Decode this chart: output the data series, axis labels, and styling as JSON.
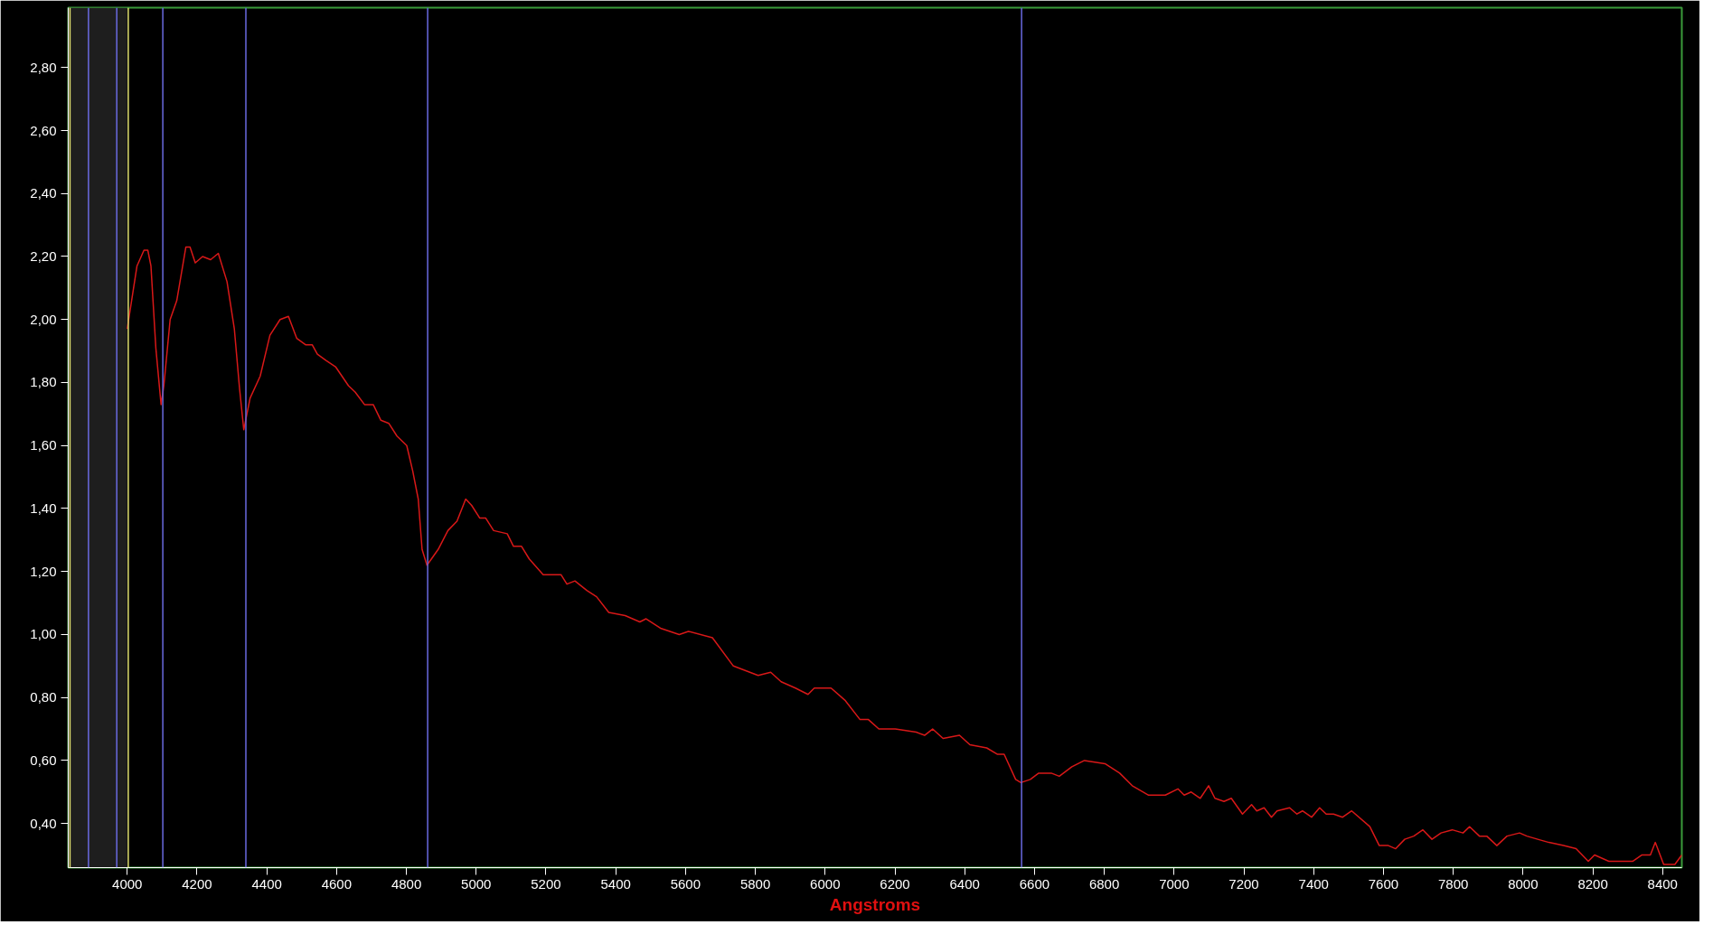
{
  "chart_data": {
    "type": "line",
    "xlabel": "Angstroms",
    "xlim": [
      3831,
      8455
    ],
    "ylim": [
      0.26,
      2.99
    ],
    "xticks": [
      4000,
      4200,
      4400,
      4600,
      4800,
      5000,
      5200,
      5400,
      5600,
      5800,
      6000,
      6200,
      6400,
      6600,
      6800,
      7000,
      7200,
      7400,
      7600,
      7800,
      8000,
      8200,
      8400
    ],
    "yticks": [
      {
        "value": 0.4,
        "label": "0,40"
      },
      {
        "value": 0.6,
        "label": "0,60"
      },
      {
        "value": 0.8,
        "label": "0,80"
      },
      {
        "value": 1.0,
        "label": "1,00"
      },
      {
        "value": 1.2,
        "label": "1,20"
      },
      {
        "value": 1.4,
        "label": "1,40"
      },
      {
        "value": 1.6,
        "label": "1,60"
      },
      {
        "value": 1.8,
        "label": "1,80"
      },
      {
        "value": 2.0,
        "label": "2,00"
      },
      {
        "value": 2.2,
        "label": "2,20"
      },
      {
        "value": 2.4,
        "label": "2,40"
      },
      {
        "value": 2.6,
        "label": "2,60"
      },
      {
        "value": 2.8,
        "label": "2,80"
      }
    ],
    "grid": false,
    "series": [
      {
        "color": "#d81818",
        "x": [
          4000,
          4028,
          4048,
          4059,
          4068,
          4082,
          4097,
          4105,
          4123,
          4142,
          4168,
          4180,
          4195,
          4216,
          4239,
          4261,
          4286,
          4307,
          4322,
          4334,
          4352,
          4381,
          4409,
          4438,
          4462,
          4486,
          4511,
          4530,
          4545,
          4570,
          4597,
          4634,
          4653,
          4680,
          4705,
          4727,
          4750,
          4773,
          4801,
          4818,
          4834,
          4845,
          4859,
          4891,
          4919,
          4945,
          4970,
          4987,
          5010,
          5027,
          5050,
          5089,
          5107,
          5130,
          5152,
          5192,
          5226,
          5243,
          5260,
          5283,
          5317,
          5345,
          5380,
          5427,
          5469,
          5487,
          5528,
          5582,
          5608,
          5677,
          5737,
          5808,
          5844,
          5874,
          5915,
          5951,
          5969,
          6017,
          6058,
          6100,
          6124,
          6154,
          6201,
          6261,
          6285,
          6308,
          6338,
          6385,
          6415,
          6463,
          6493,
          6513,
          6546,
          6561,
          6588,
          6612,
          6648,
          6671,
          6707,
          6743,
          6802,
          6844,
          6880,
          6927,
          6975,
          7011,
          7029,
          7049,
          7075,
          7099,
          7117,
          7143,
          7164,
          7196,
          7222,
          7237,
          7258,
          7279,
          7295,
          7331,
          7352,
          7368,
          7394,
          7417,
          7436,
          7457,
          7483,
          7509,
          7561,
          7588,
          7614,
          7635,
          7661,
          7687,
          7713,
          7739,
          7765,
          7797,
          7828,
          7847,
          7875,
          7896,
          7925,
          7954,
          7990,
          8011,
          8042,
          8074,
          8116,
          8152,
          8187,
          8205,
          8246,
          8283,
          8314,
          8340,
          8365,
          8379,
          8403,
          8435,
          8455
        ],
        "values": [
          1.97,
          2.17,
          2.22,
          2.22,
          2.17,
          1.91,
          1.73,
          1.79,
          2.0,
          2.06,
          2.23,
          2.23,
          2.18,
          2.2,
          2.19,
          2.21,
          2.12,
          1.97,
          1.78,
          1.65,
          1.75,
          1.82,
          1.95,
          2.0,
          2.01,
          1.94,
          1.92,
          1.92,
          1.89,
          1.87,
          1.85,
          1.79,
          1.77,
          1.73,
          1.73,
          1.68,
          1.67,
          1.63,
          1.6,
          1.52,
          1.43,
          1.27,
          1.22,
          1.27,
          1.33,
          1.36,
          1.43,
          1.41,
          1.37,
          1.37,
          1.33,
          1.32,
          1.28,
          1.28,
          1.24,
          1.19,
          1.19,
          1.19,
          1.16,
          1.17,
          1.14,
          1.12,
          1.07,
          1.06,
          1.04,
          1.05,
          1.02,
          1.0,
          1.01,
          0.99,
          0.9,
          0.87,
          0.88,
          0.85,
          0.83,
          0.81,
          0.83,
          0.83,
          0.79,
          0.73,
          0.73,
          0.7,
          0.7,
          0.69,
          0.68,
          0.7,
          0.67,
          0.68,
          0.65,
          0.64,
          0.62,
          0.62,
          0.54,
          0.53,
          0.54,
          0.56,
          0.56,
          0.55,
          0.58,
          0.6,
          0.59,
          0.56,
          0.52,
          0.49,
          0.49,
          0.51,
          0.49,
          0.5,
          0.48,
          0.52,
          0.48,
          0.47,
          0.48,
          0.43,
          0.46,
          0.44,
          0.45,
          0.42,
          0.44,
          0.45,
          0.43,
          0.44,
          0.42,
          0.45,
          0.43,
          0.43,
          0.42,
          0.44,
          0.39,
          0.33,
          0.33,
          0.32,
          0.35,
          0.36,
          0.38,
          0.35,
          0.37,
          0.38,
          0.37,
          0.39,
          0.36,
          0.36,
          0.33,
          0.36,
          0.37,
          0.36,
          0.35,
          0.34,
          0.33,
          0.32,
          0.28,
          0.3,
          0.28,
          0.28,
          0.28,
          0.3,
          0.3,
          0.34,
          0.27,
          0.27,
          0.3
        ]
      }
    ],
    "line_style": "solid",
    "bands": [
      {
        "axis": "x",
        "from": 3831,
        "to": 4000,
        "color": "#1e1e1e"
      }
    ],
    "ref_lines": [
      {
        "axis": "x",
        "value": 3836,
        "color": "#e0e070"
      },
      {
        "axis": "x",
        "value": 4003,
        "color": "#e0e070"
      },
      {
        "axis": "x",
        "value": 3889,
        "color": "#6a6ae0"
      },
      {
        "axis": "x",
        "value": 3970,
        "color": "#6a6ae0"
      },
      {
        "axis": "x",
        "value": 4102,
        "color": "#6a6ae0"
      },
      {
        "axis": "x",
        "value": 4340,
        "color": "#6a6ae0"
      },
      {
        "axis": "x",
        "value": 4861,
        "color": "#6a6ae0"
      },
      {
        "axis": "x",
        "value": 6563,
        "color": "#6a6ae0"
      }
    ]
  }
}
